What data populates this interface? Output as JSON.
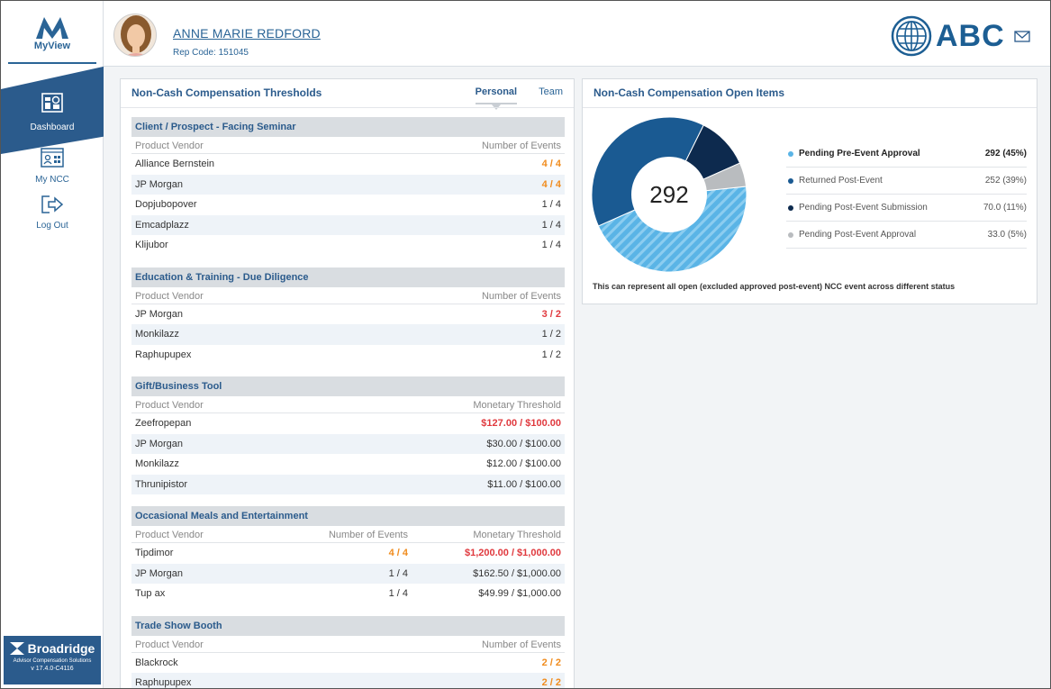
{
  "app": {
    "logo_label": "MyView",
    "nav": [
      {
        "label": "Dashboard",
        "icon": "dashboard-icon"
      },
      {
        "label": "My NCC",
        "icon": "ncc-icon"
      },
      {
        "label": "Log Out",
        "icon": "logout-icon"
      }
    ],
    "footer": {
      "brand": "Broadridge",
      "sub": "Advisor Compensation Solutions",
      "version": "v 17.4.0-C4116"
    }
  },
  "header": {
    "user_name": "ANNE MARIE REDFORD",
    "rep_code": "Rep Code: 151045",
    "company": "ABC"
  },
  "colors": {
    "primary": "#2b5b8c",
    "dark_navy": "#0d2a4e",
    "light_blue": "#5ab4e6",
    "gray": "#b9bcbf",
    "orange": "#f08c1e",
    "red": "#e0393e"
  },
  "thresholds": {
    "title": "Non-Cash Compensation Thresholds",
    "tabs": [
      "Personal",
      "Team"
    ],
    "sections": [
      {
        "title": "Client / Prospect - Facing Seminar",
        "columns": [
          "Product Vendor",
          "Number of Events"
        ],
        "rows": [
          {
            "vendor": "Alliance Bernstein",
            "v1": "4 / 4",
            "s1": "orange"
          },
          {
            "vendor": "JP Morgan",
            "v1": "4 / 4",
            "s1": "orange"
          },
          {
            "vendor": "Dopjubopover",
            "v1": "1 / 4",
            "s1": ""
          },
          {
            "vendor": "Emcadplazz",
            "v1": "1 / 4",
            "s1": ""
          },
          {
            "vendor": "Klijubor",
            "v1": "1 / 4",
            "s1": ""
          }
        ]
      },
      {
        "title": "Education & Training - Due Diligence",
        "columns": [
          "Product Vendor",
          "Number of Events"
        ],
        "rows": [
          {
            "vendor": "JP Morgan",
            "v1": "3 / 2",
            "s1": "red"
          },
          {
            "vendor": "Monkilazz",
            "v1": "1 / 2",
            "s1": ""
          },
          {
            "vendor": "Raphupupex",
            "v1": "1 / 2",
            "s1": ""
          }
        ]
      },
      {
        "title": "Gift/Business Tool",
        "columns": [
          "Product Vendor",
          "Monetary Threshold"
        ],
        "rows": [
          {
            "vendor": "Zeefropepan",
            "v1": "$127.00 / $100.00",
            "s1": "red"
          },
          {
            "vendor": "JP Morgan",
            "v1": "$30.00 / $100.00",
            "s1": ""
          },
          {
            "vendor": "Monkilazz",
            "v1": "$12.00 / $100.00",
            "s1": ""
          },
          {
            "vendor": "Thrunipistor",
            "v1": "$11.00 / $100.00",
            "s1": ""
          }
        ]
      },
      {
        "title": "Occasional Meals and Entertainment",
        "columns": [
          "Product Vendor",
          "Number of Events",
          "Monetary Threshold"
        ],
        "rows": [
          {
            "vendor": "Tipdimor",
            "v1": "4 / 4",
            "s1": "orange",
            "v2": "$1,200.00 / $1,000.00",
            "s2": "red"
          },
          {
            "vendor": "JP Morgan",
            "v1": "1 / 4",
            "s1": "",
            "v2": "$162.50 / $1,000.00",
            "s2": ""
          },
          {
            "vendor": "Tup ax",
            "v1": "1 / 4",
            "s1": "",
            "v2": "$49.99 / $1,000.00",
            "s2": ""
          }
        ]
      },
      {
        "title": "Trade Show Booth",
        "columns": [
          "Product Vendor",
          "Number of Events"
        ],
        "rows": [
          {
            "vendor": "Blackrock",
            "v1": "2 / 2",
            "s1": "orange"
          },
          {
            "vendor": "Raphupupex",
            "v1": "2 / 2",
            "s1": "orange"
          }
        ]
      }
    ]
  },
  "open_items": {
    "title": "Non-Cash Compensation Open Items",
    "total": "292",
    "note": "This can represent all open (excluded approved post-event) NCC event across different status",
    "legend": [
      {
        "name": "Pending Pre-Event Approval",
        "value": "292 (45%)",
        "pct": 45,
        "color": "#5ab4e6",
        "pattern": "hatch",
        "bold": true
      },
      {
        "name": "Returned Post-Event",
        "value": "252 (39%)",
        "pct": 39,
        "color": "#1a5a92",
        "pattern": "solid",
        "bold": false
      },
      {
        "name": "Pending Post-Event Submission",
        "value": "70.0 (11%)",
        "pct": 11,
        "color": "#0d2a4e",
        "pattern": "solid",
        "bold": false
      },
      {
        "name": "Pending Post-Event Approval",
        "value": "33.0 (5%)",
        "pct": 5,
        "color": "#b9bcbf",
        "pattern": "solid",
        "bold": false
      }
    ]
  }
}
